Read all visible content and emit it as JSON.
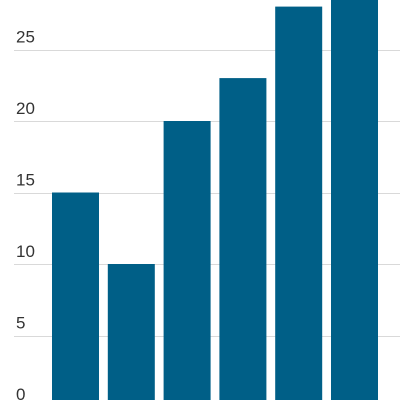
{
  "chart_data": {
    "type": "bar",
    "categories": [
      "",
      "",
      "",
      "",
      "",
      ""
    ],
    "values": [
      15,
      10,
      20,
      23,
      28,
      28.5
    ],
    "title": "",
    "xlabel": "",
    "ylabel": "",
    "ylim": [
      0,
      28
    ],
    "y_ticks": [
      0,
      5,
      10,
      15,
      20,
      25
    ],
    "y_tick_labels": [
      "0",
      "5",
      "10",
      "15",
      "20",
      "25"
    ],
    "grid": true,
    "bar_color": "#005f87",
    "grid_color": "#d9d9d9"
  }
}
